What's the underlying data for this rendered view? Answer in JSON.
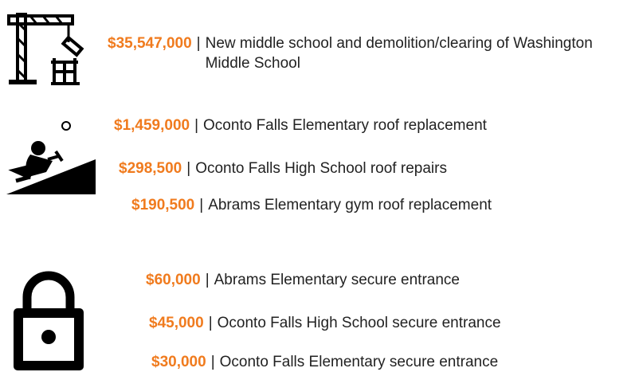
{
  "separator": "|",
  "groups": [
    {
      "items": [
        {
          "amount": "$35,547,000",
          "description": "New middle school and demolition/clearing of Washington Middle School"
        }
      ]
    },
    {
      "items": [
        {
          "amount": "$1,459,000",
          "description": "Oconto Falls Elementary roof replacement"
        },
        {
          "amount": "$298,500",
          "description": "Oconto Falls High School roof repairs"
        },
        {
          "amount": "$190,500",
          "description": "Abrams Elementary gym roof replacement"
        }
      ]
    },
    {
      "items": [
        {
          "amount": "$60,000",
          "description": "Abrams Elementary secure entrance"
        },
        {
          "amount": "$45,000",
          "description": "Oconto Falls High School secure entrance"
        },
        {
          "amount": "$30,000",
          "description": "Oconto Falls Elementary secure entrance"
        }
      ]
    }
  ]
}
